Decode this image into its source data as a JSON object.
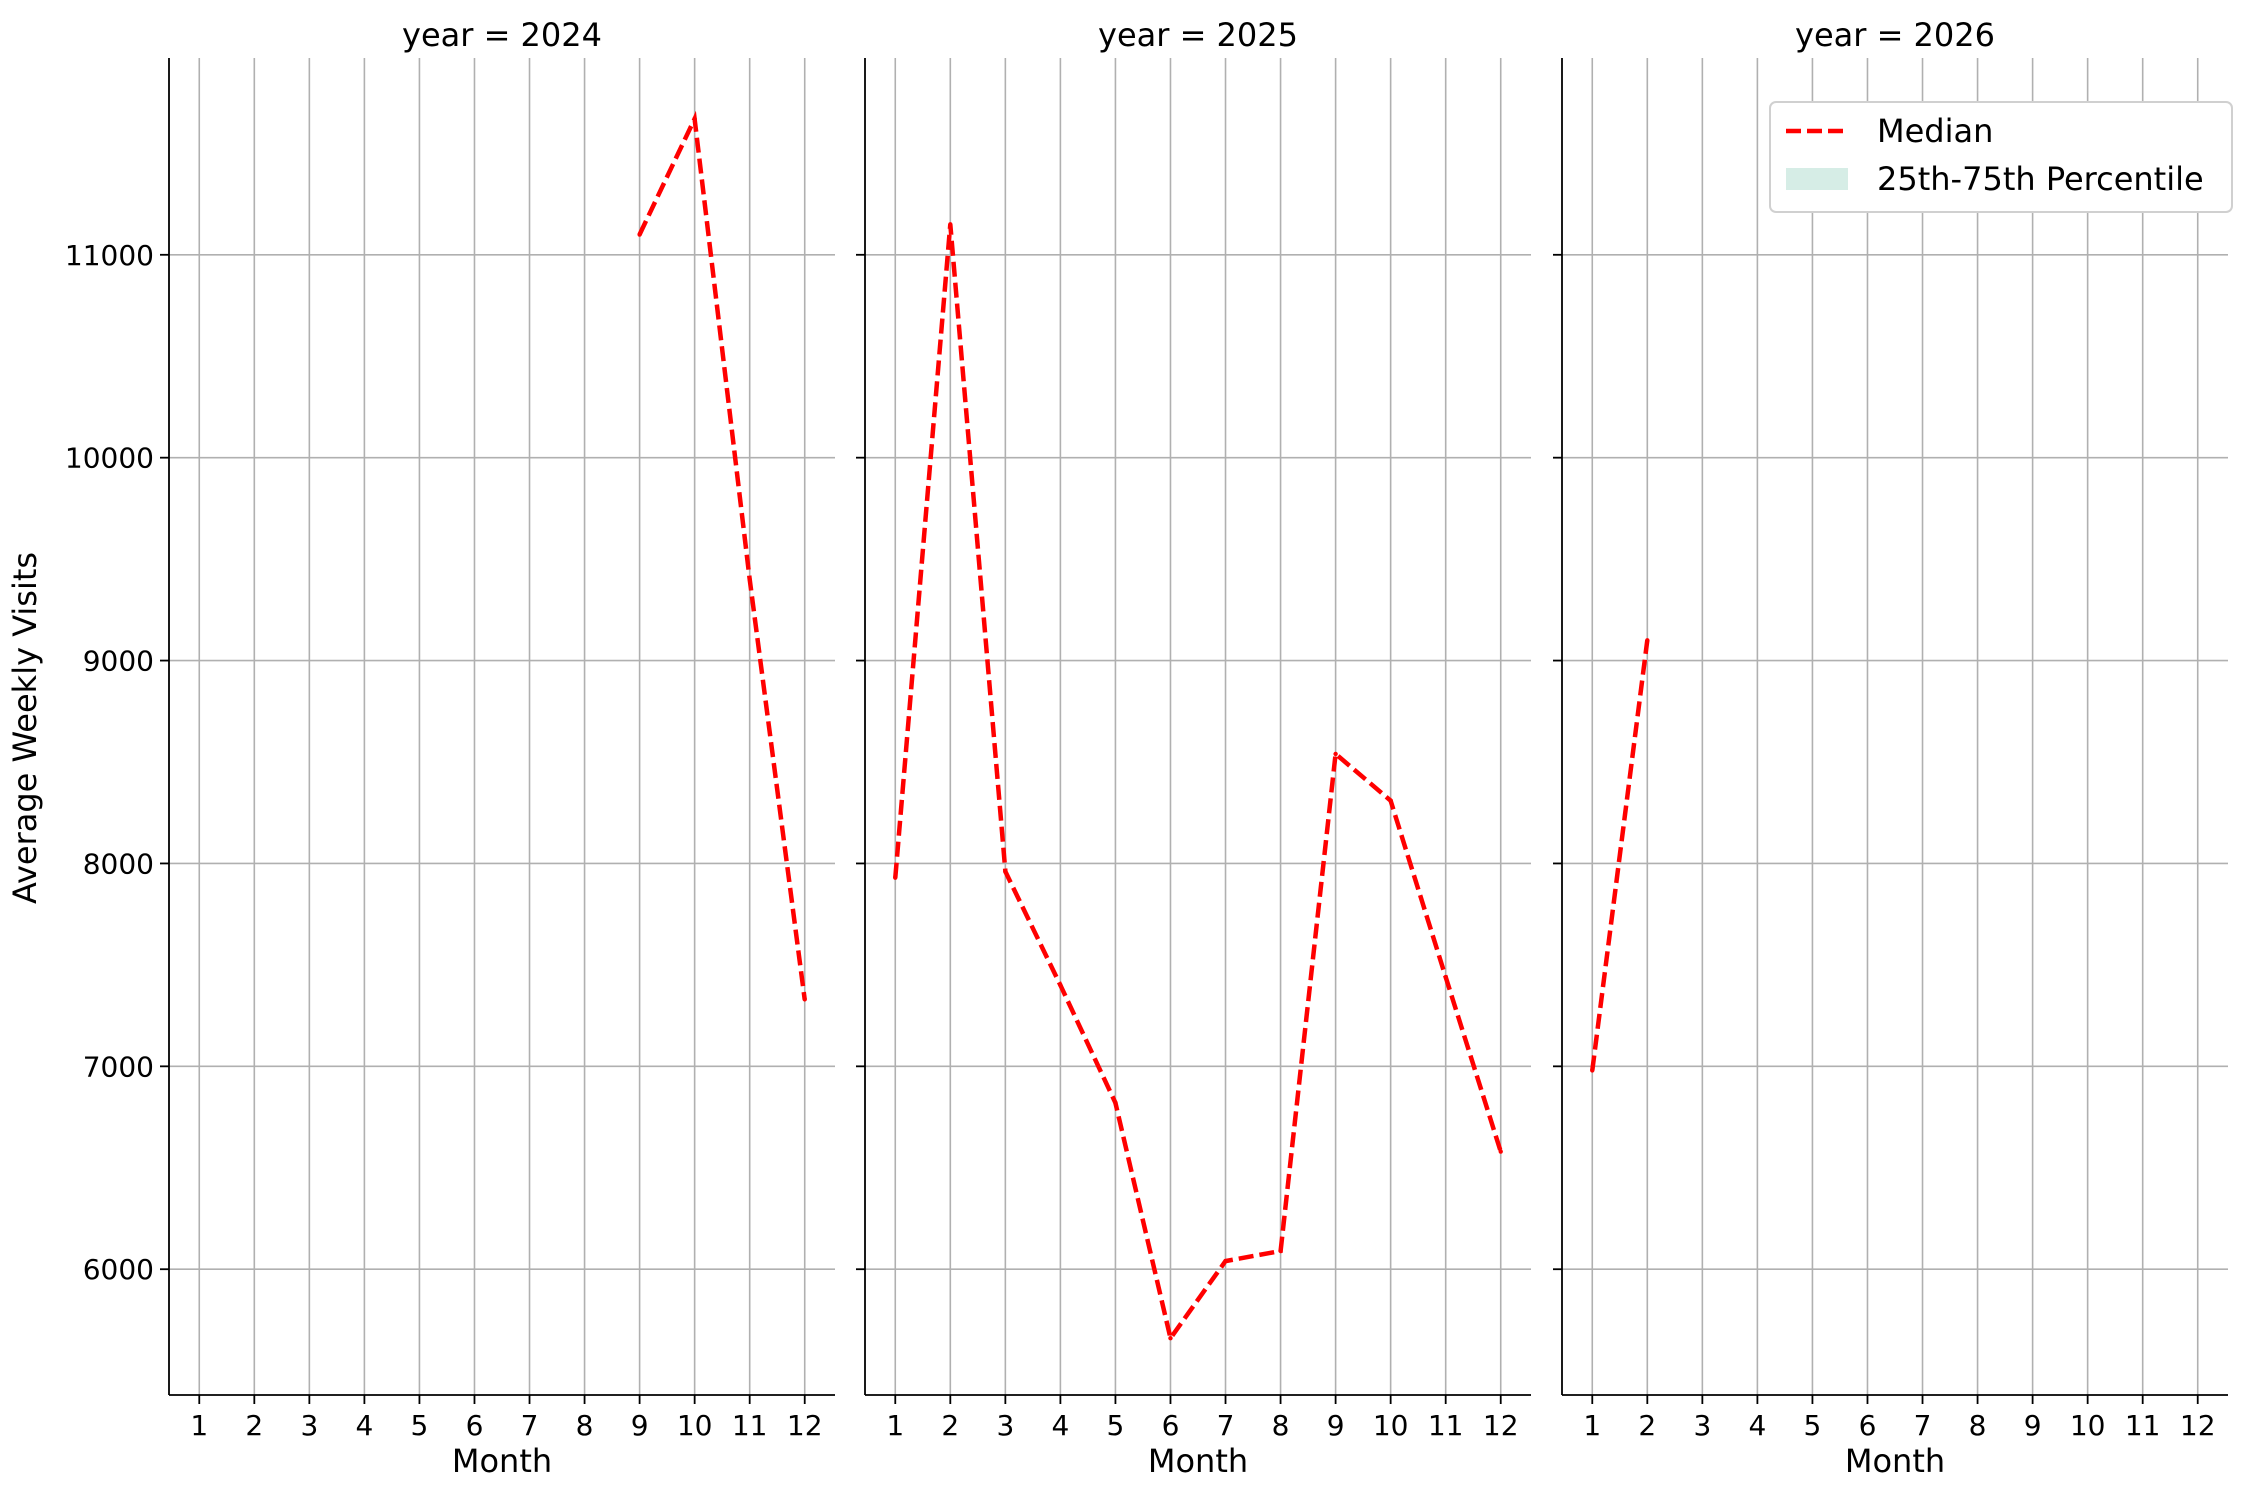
{
  "chart_data": {
    "type": "line",
    "facet_label_prefix": "year = ",
    "ylabel": "Average Weekly Visits",
    "xlabel": "Month",
    "x_ticks": [
      1,
      2,
      3,
      4,
      5,
      6,
      7,
      8,
      9,
      10,
      11,
      12
    ],
    "y_ticks": [
      6000,
      7000,
      8000,
      9000,
      10000,
      11000
    ],
    "ylim": [
      5380,
      11970
    ],
    "xlim": [
      0.45,
      12.55
    ],
    "grid": true,
    "legend_position": "top-right",
    "legend": {
      "entries": [
        {
          "label": "Median",
          "kind": "dashed-line",
          "color": "#ff0000"
        },
        {
          "label": "25th-75th Percentile",
          "kind": "band",
          "color": "#d6ede6"
        }
      ]
    },
    "colors": {
      "median": "#ff0000",
      "grid": "#b0b0b0",
      "band": "#d6ede6"
    },
    "panels": [
      {
        "year": "2024",
        "series": [
          {
            "kind": "median",
            "x": [
              9,
              10,
              11,
              12
            ],
            "y": [
              11100,
              11670,
              9400,
              7330
            ]
          }
        ]
      },
      {
        "year": "2025",
        "series": [
          {
            "kind": "median",
            "x": [
              1,
              2,
              3,
              4,
              5,
              6,
              7,
              8,
              9,
              10,
              11,
              12
            ],
            "y": [
              7930,
              11150,
              7960,
              7400,
              6820,
              5660,
              6040,
              6090,
              8540,
              8310,
              7440,
              6580
            ]
          }
        ]
      },
      {
        "year": "2026",
        "series": [
          {
            "kind": "median",
            "x": [
              1,
              2
            ],
            "y": [
              6980,
              9100
            ]
          }
        ]
      }
    ]
  }
}
